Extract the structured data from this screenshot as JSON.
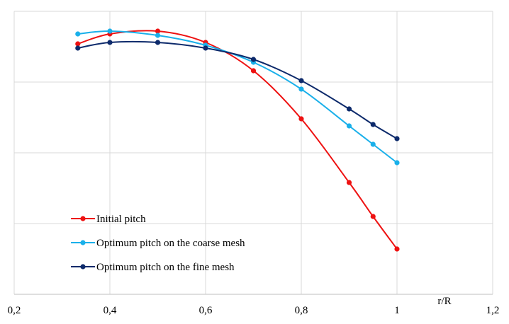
{
  "chart_data": {
    "type": "line",
    "title": "",
    "xlabel": "r/R",
    "ylabel": "",
    "xlim": [
      0.2,
      1.2
    ],
    "ylim": [
      0,
      100
    ],
    "x_ticks": [
      0.2,
      0.4,
      0.6,
      0.8,
      1,
      1.2
    ],
    "x_tick_labels": [
      "0,2",
      "0,4",
      "0,6",
      "0,8",
      "1",
      "1,2"
    ],
    "grid": {
      "vertical": true,
      "horizontal": true,
      "y_gridlines": [
        0,
        25,
        50,
        75,
        100
      ]
    },
    "y_tick_labels_visible": false,
    "legend": {
      "position": "bottom-left"
    },
    "smooth": true,
    "series": [
      {
        "name": "Initial pitch",
        "color": "#ee1111",
        "x": [
          0.333,
          0.4,
          0.5,
          0.6,
          0.7,
          0.8,
          0.9,
          0.95,
          1.0
        ],
        "y": [
          88.5,
          92.0,
          93.0,
          89.0,
          79.0,
          62.0,
          39.5,
          27.5,
          16.0
        ]
      },
      {
        "name": "Optimum pitch on the coarse mesh",
        "color": "#1ab0ea",
        "x": [
          0.333,
          0.4,
          0.5,
          0.6,
          0.7,
          0.8,
          0.9,
          0.95,
          1.0
        ],
        "y": [
          92.0,
          93.0,
          91.5,
          88.0,
          82.0,
          72.5,
          59.5,
          53.0,
          46.5
        ]
      },
      {
        "name": "Optimum pitch on the fine mesh",
        "color": "#0d2a6b",
        "x": [
          0.333,
          0.4,
          0.5,
          0.6,
          0.7,
          0.8,
          0.9,
          0.95,
          1.0
        ],
        "y": [
          87.0,
          89.0,
          89.0,
          87.0,
          83.0,
          75.5,
          65.5,
          60.0,
          55.0
        ]
      }
    ]
  }
}
